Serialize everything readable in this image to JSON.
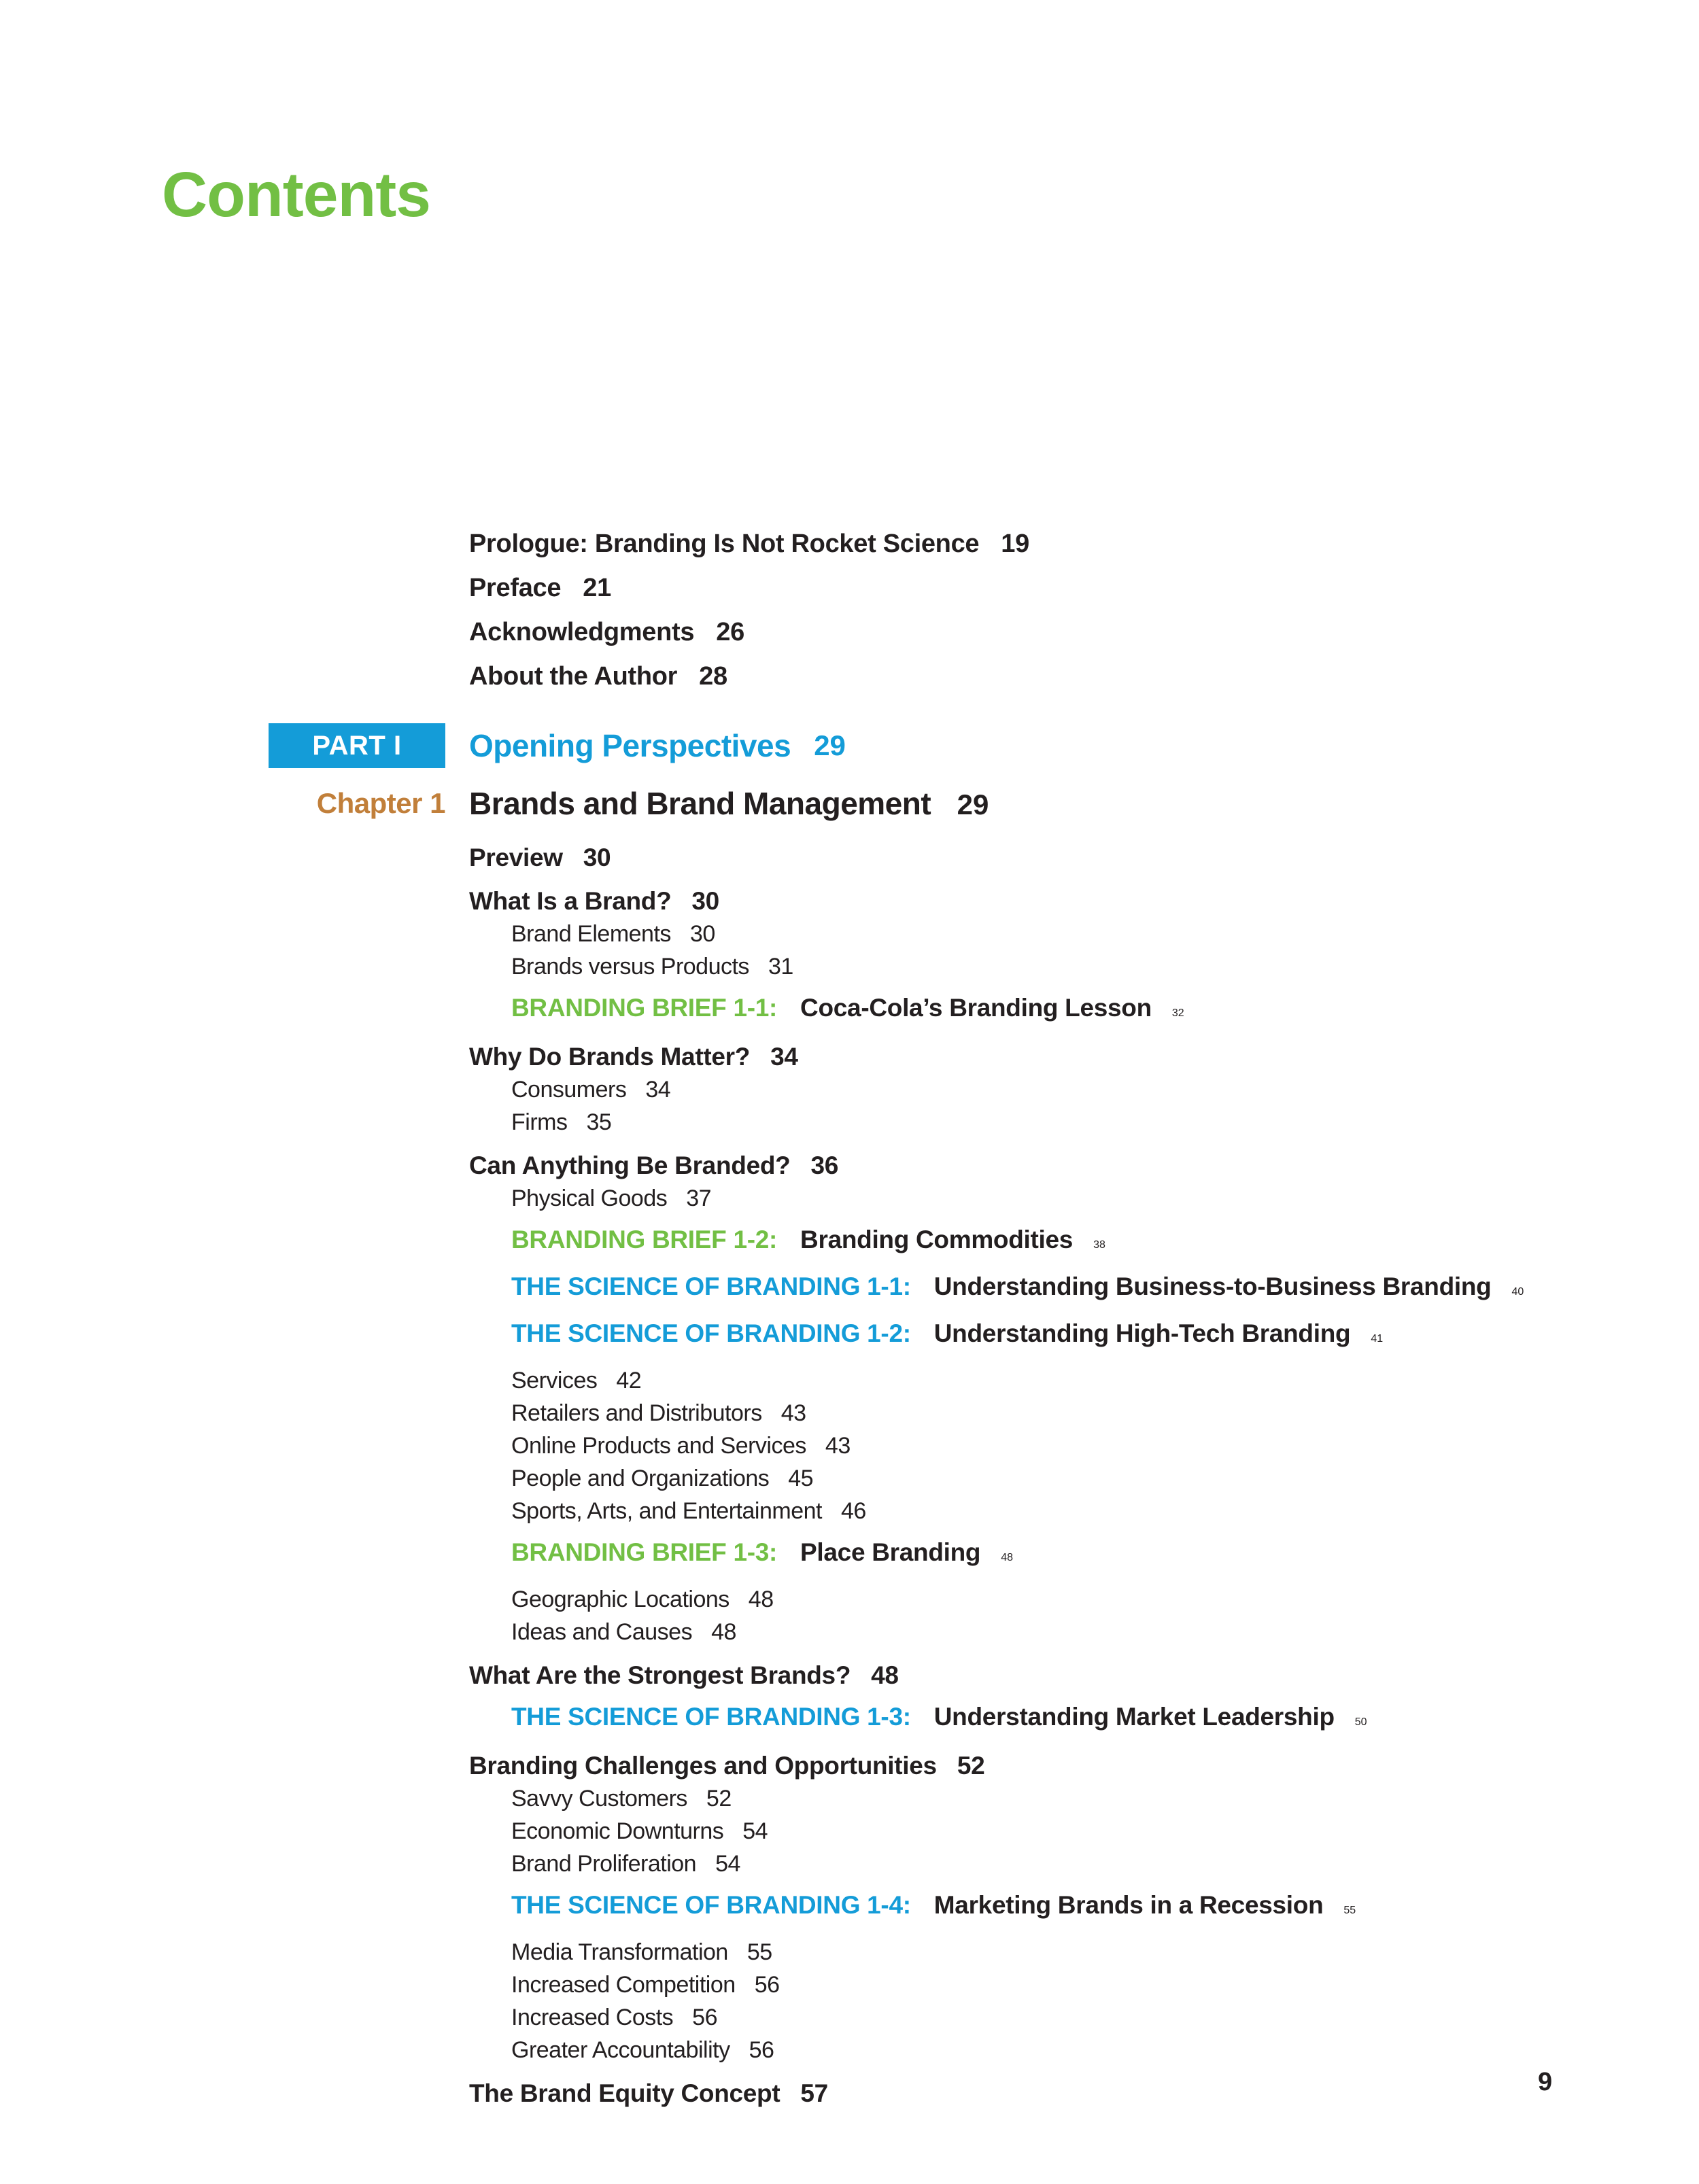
{
  "page": {
    "title": "Contents",
    "page_number": "9",
    "colors": {
      "title_green": "#72BF44",
      "accent_blue": "#149CD8",
      "chapter_orange": "#C17F3A",
      "text_ink": "#231F20"
    }
  },
  "front_matter": [
    {
      "label": "Prologue: Branding Is Not Rocket Science",
      "page": "19"
    },
    {
      "label": "Preface",
      "page": "21"
    },
    {
      "label": "Acknowledgments",
      "page": "26"
    },
    {
      "label": "About the Author",
      "page": "28"
    }
  ],
  "part": {
    "label": "PART I",
    "title": "Opening Perspectives",
    "page": "29"
  },
  "chapter": {
    "label": "Chapter 1",
    "title": "Brands and Brand Management",
    "page": "29"
  },
  "entries": [
    {
      "type": "h1",
      "text": "Preview",
      "page": "30"
    },
    {
      "type": "h1",
      "text": "What Is a Brand?",
      "page": "30"
    },
    {
      "type": "sub",
      "text": "Brand Elements",
      "page": "30"
    },
    {
      "type": "sub",
      "text": "Brands versus Products",
      "page": "31"
    },
    {
      "type": "feature",
      "color": "green",
      "tag": "BRANDING BRIEF 1-1:",
      "text": "Coca-Cola’s Branding Lesson",
      "page": "32"
    },
    {
      "type": "h1",
      "text": "Why Do Brands Matter?",
      "page": "34"
    },
    {
      "type": "sub",
      "text": "Consumers",
      "page": "34"
    },
    {
      "type": "sub",
      "text": "Firms",
      "page": "35"
    },
    {
      "type": "h1",
      "text": "Can Anything Be Branded?",
      "page": "36"
    },
    {
      "type": "sub",
      "text": "Physical Goods",
      "page": "37"
    },
    {
      "type": "feature",
      "color": "green",
      "tag": "BRANDING BRIEF 1-2:",
      "text": "Branding Commodities",
      "page": "38"
    },
    {
      "type": "feature",
      "color": "blue",
      "tag": "THE SCIENCE OF BRANDING 1-1:",
      "text": "Understanding Business-to-Business Branding",
      "page": "40"
    },
    {
      "type": "feature",
      "color": "blue",
      "tag": "THE SCIENCE OF BRANDING 1-2:",
      "text": "Understanding High-Tech Branding",
      "page": "41"
    },
    {
      "type": "sub",
      "text": "Services",
      "page": "42"
    },
    {
      "type": "sub",
      "text": "Retailers and Distributors",
      "page": "43"
    },
    {
      "type": "sub",
      "text": "Online Products and Services",
      "page": "43"
    },
    {
      "type": "sub",
      "text": "People and Organizations",
      "page": "45"
    },
    {
      "type": "sub",
      "text": "Sports, Arts, and Entertainment",
      "page": "46"
    },
    {
      "type": "feature",
      "color": "green",
      "tag": "BRANDING BRIEF 1-3:",
      "text": "Place Branding",
      "page": "48"
    },
    {
      "type": "sub",
      "text": "Geographic Locations",
      "page": "48"
    },
    {
      "type": "sub",
      "text": "Ideas and Causes",
      "page": "48"
    },
    {
      "type": "h1",
      "text": "What Are the Strongest Brands?",
      "page": "48"
    },
    {
      "type": "feature",
      "color": "blue",
      "tag": "THE SCIENCE OF BRANDING 1-3:",
      "text": "Understanding Market Leadership",
      "page": "50"
    },
    {
      "type": "h1",
      "text": "Branding Challenges and Opportunities",
      "page": "52"
    },
    {
      "type": "sub",
      "text": "Savvy Customers",
      "page": "52"
    },
    {
      "type": "sub",
      "text": "Economic Downturns",
      "page": "54"
    },
    {
      "type": "sub",
      "text": "Brand Proliferation",
      "page": "54"
    },
    {
      "type": "feature",
      "color": "blue",
      "tag": "THE SCIENCE OF BRANDING 1-4:",
      "text": "Marketing Brands in a Recession",
      "page": "55"
    },
    {
      "type": "sub",
      "text": "Media Transformation",
      "page": "55"
    },
    {
      "type": "sub",
      "text": "Increased Competition",
      "page": "56"
    },
    {
      "type": "sub",
      "text": "Increased Costs",
      "page": "56"
    },
    {
      "type": "sub",
      "text": "Greater Accountability",
      "page": "56"
    },
    {
      "type": "h1",
      "text": "The Brand Equity Concept",
      "page": "57"
    }
  ]
}
